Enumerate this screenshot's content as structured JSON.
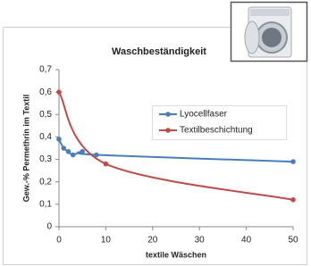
{
  "chart_data": {
    "type": "line",
    "title": "Waschbeständigkeit",
    "x_label": "textile Wäschen",
    "y_label": "Gew.-% Permethrin im Textil",
    "xlim": [
      0,
      50
    ],
    "xticks": [
      0,
      10,
      20,
      30,
      40,
      50
    ],
    "ylim": [
      0,
      0.7
    ],
    "yticks": [
      0,
      {
        "value": 0.1,
        "label": "0,1"
      },
      {
        "value": 0.2,
        "label": "0,2"
      },
      {
        "value": 0.3,
        "label": "0,3"
      },
      {
        "value": 0.4,
        "label": "0,4"
      },
      {
        "value": 0.5,
        "label": "0,5"
      },
      {
        "value": 0.6,
        "label": "0,6"
      },
      {
        "value": 0.7,
        "label": "0,7"
      }
    ],
    "grid": false,
    "smooth": true,
    "legend": "upper-right",
    "series": [
      {
        "name": "Lyocellfaser",
        "color": "#4a7ebb",
        "x": [
          0,
          1,
          2,
          3,
          5,
          8,
          50
        ],
        "values": [
          0.39,
          0.35,
          0.335,
          0.32,
          0.335,
          0.32,
          0.29
        ]
      },
      {
        "name": "Textilbeschichtung",
        "color": "#be4b48",
        "x": [
          0,
          10,
          50
        ],
        "values": [
          0.6,
          0.28,
          0.12
        ]
      }
    ]
  }
}
